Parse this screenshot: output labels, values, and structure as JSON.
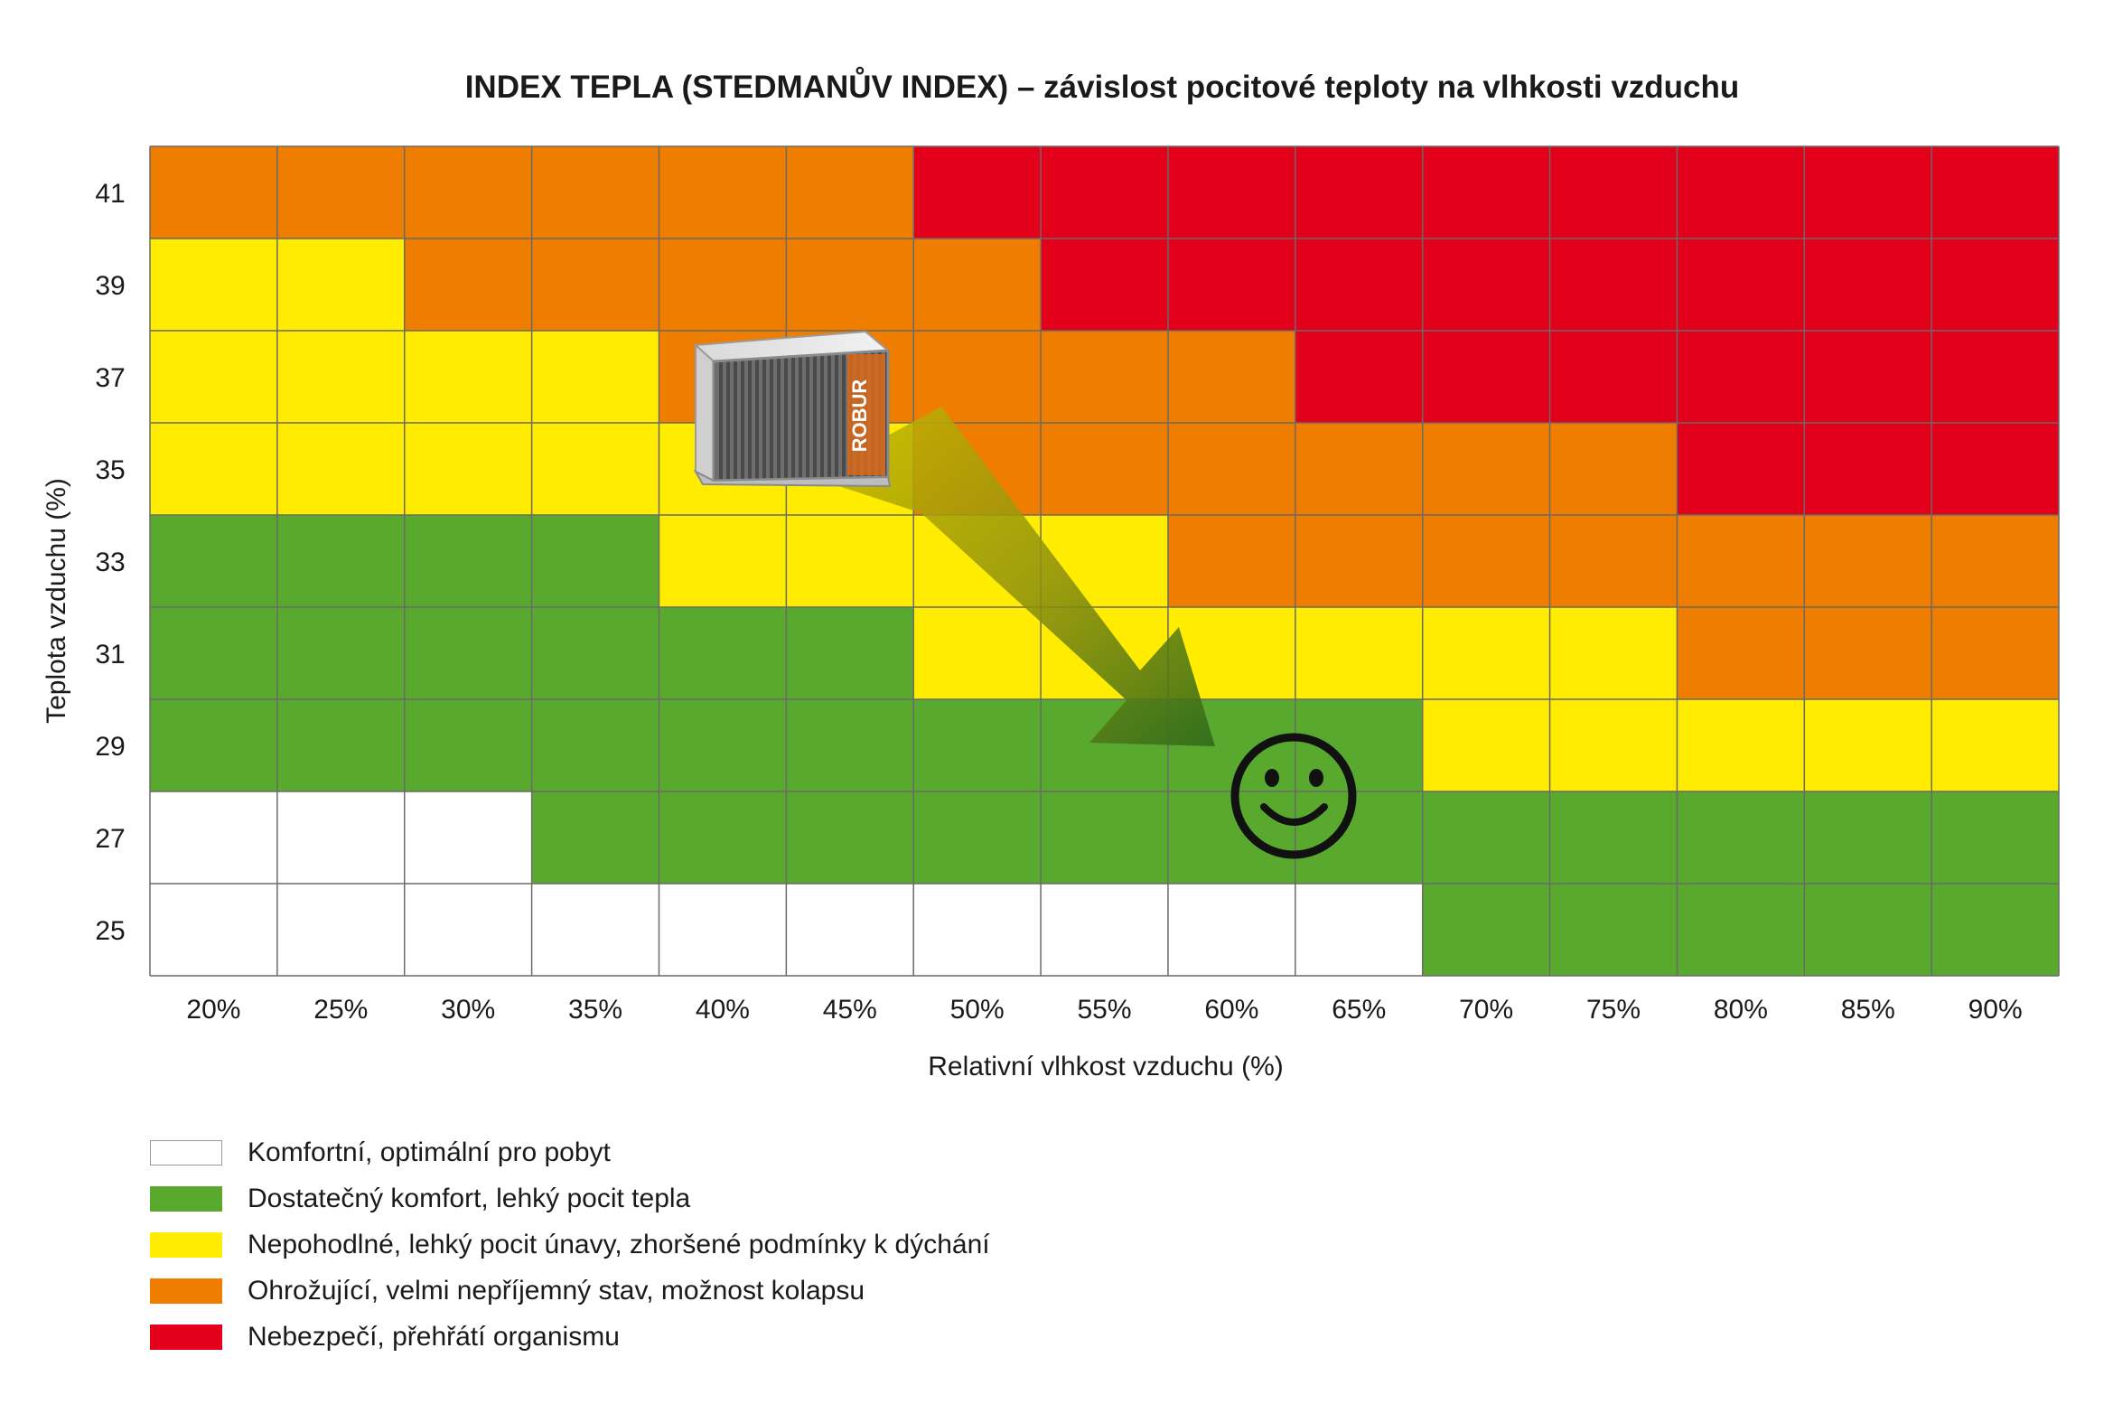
{
  "chart_data": {
    "type": "heatmap",
    "title": "INDEX TEPLA (STEDMANŮV INDEX) – závislost pocitové teploty na vlhkosti vzduchu",
    "xlabel": "Relativní vlhkost vzduchu (%)",
    "ylabel": "Teplota vzduchu (%)",
    "x": [
      "20%",
      "25%",
      "30%",
      "35%",
      "40%",
      "45%",
      "50%",
      "55%",
      "60%",
      "65%",
      "70%",
      "75%",
      "80%",
      "85%",
      "90%"
    ],
    "y": [
      "41",
      "39",
      "37",
      "35",
      "33",
      "31",
      "29",
      "27",
      "25"
    ],
    "values": [
      [
        3,
        3,
        3,
        3,
        3,
        3,
        4,
        4,
        4,
        4,
        4,
        4,
        4,
        4,
        4
      ],
      [
        2,
        2,
        3,
        3,
        3,
        3,
        3,
        4,
        4,
        4,
        4,
        4,
        4,
        4,
        4
      ],
      [
        2,
        2,
        2,
        2,
        3,
        3,
        3,
        3,
        3,
        4,
        4,
        4,
        4,
        4,
        4
      ],
      [
        2,
        2,
        2,
        2,
        2,
        2,
        3,
        3,
        3,
        3,
        3,
        3,
        4,
        4,
        4
      ],
      [
        1,
        1,
        1,
        1,
        2,
        2,
        2,
        2,
        3,
        3,
        3,
        3,
        3,
        3,
        3
      ],
      [
        1,
        1,
        1,
        1,
        1,
        1,
        2,
        2,
        2,
        2,
        2,
        2,
        3,
        3,
        3
      ],
      [
        1,
        1,
        1,
        1,
        1,
        1,
        1,
        1,
        1,
        1,
        2,
        2,
        2,
        2,
        2
      ],
      [
        0,
        0,
        0,
        1,
        1,
        1,
        1,
        1,
        1,
        1,
        1,
        1,
        1,
        1,
        1
      ],
      [
        0,
        0,
        0,
        0,
        0,
        0,
        0,
        0,
        0,
        0,
        1,
        1,
        1,
        1,
        1
      ]
    ],
    "levels": [
      {
        "label": "Komfortní, optimální pro pobyt",
        "color": "#ffffff"
      },
      {
        "label": "Dostatečný komfort, lehký pocit tepla",
        "color": "#58a92e"
      },
      {
        "label": "Nepohodlné, lehký pocit únavy, zhoršené podmínky k dýchání",
        "color": "#ffec00"
      },
      {
        "label": "Ohrožující, velmi nepříjemný stav, možnost kolapsu",
        "color": "#ee7d00"
      },
      {
        "label": "Nebezpečí, přehřátí organismu",
        "color": "#e2001a"
      }
    ],
    "grid": true,
    "legend": "bottom-left",
    "annotations": {
      "device": {
        "icon": "air-cooler-icon",
        "x": "42%",
        "y": 36
      },
      "arrow": {
        "from": {
          "x": "45%",
          "y": 35
        },
        "to": {
          "x": "60%",
          "y": 29.5
        }
      },
      "smiley": {
        "icon": "smiley-icon",
        "x": "65%",
        "y": 28
      }
    }
  }
}
